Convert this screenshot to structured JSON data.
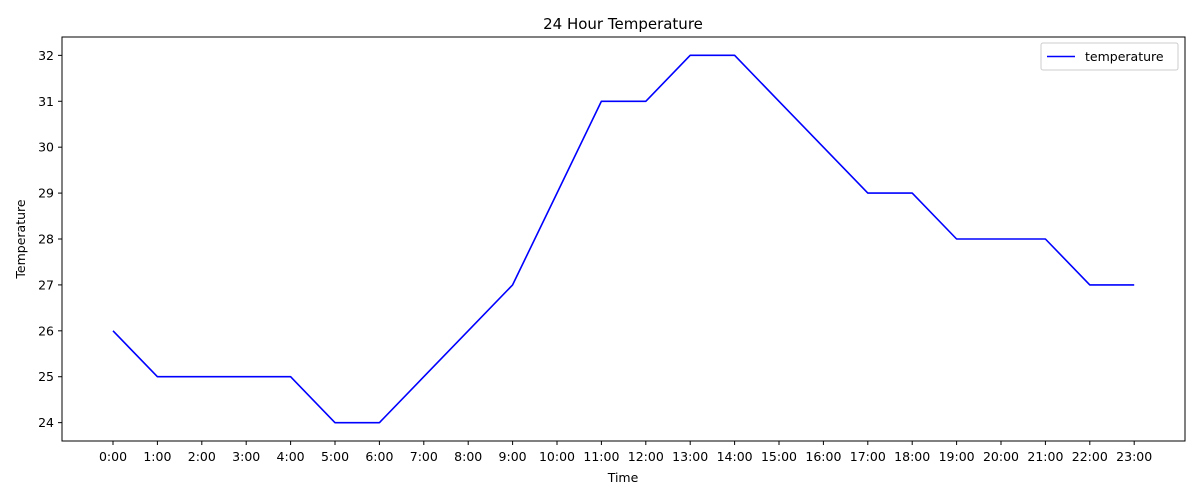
{
  "chart_data": {
    "type": "line",
    "title": "24 Hour Temperature",
    "xlabel": "Time",
    "ylabel": "Temperature",
    "categories": [
      "0:00",
      "1:00",
      "2:00",
      "3:00",
      "4:00",
      "5:00",
      "6:00",
      "7:00",
      "8:00",
      "9:00",
      "10:00",
      "11:00",
      "12:00",
      "13:00",
      "14:00",
      "15:00",
      "16:00",
      "17:00",
      "18:00",
      "19:00",
      "20:00",
      "21:00",
      "22:00",
      "23:00"
    ],
    "series": [
      {
        "name": "temperature",
        "color": "#0000ff",
        "values": [
          26,
          25,
          25,
          25,
          25,
          24,
          24,
          25,
          26,
          27,
          29,
          31,
          31,
          32,
          32,
          31,
          30,
          29,
          29,
          28,
          28,
          28,
          27,
          27
        ]
      }
    ],
    "ylim": [
      23.6,
      32.4
    ],
    "yticks": [
      24,
      25,
      26,
      27,
      28,
      29,
      30,
      31,
      32
    ],
    "grid": false,
    "legend_position": "upper right"
  }
}
